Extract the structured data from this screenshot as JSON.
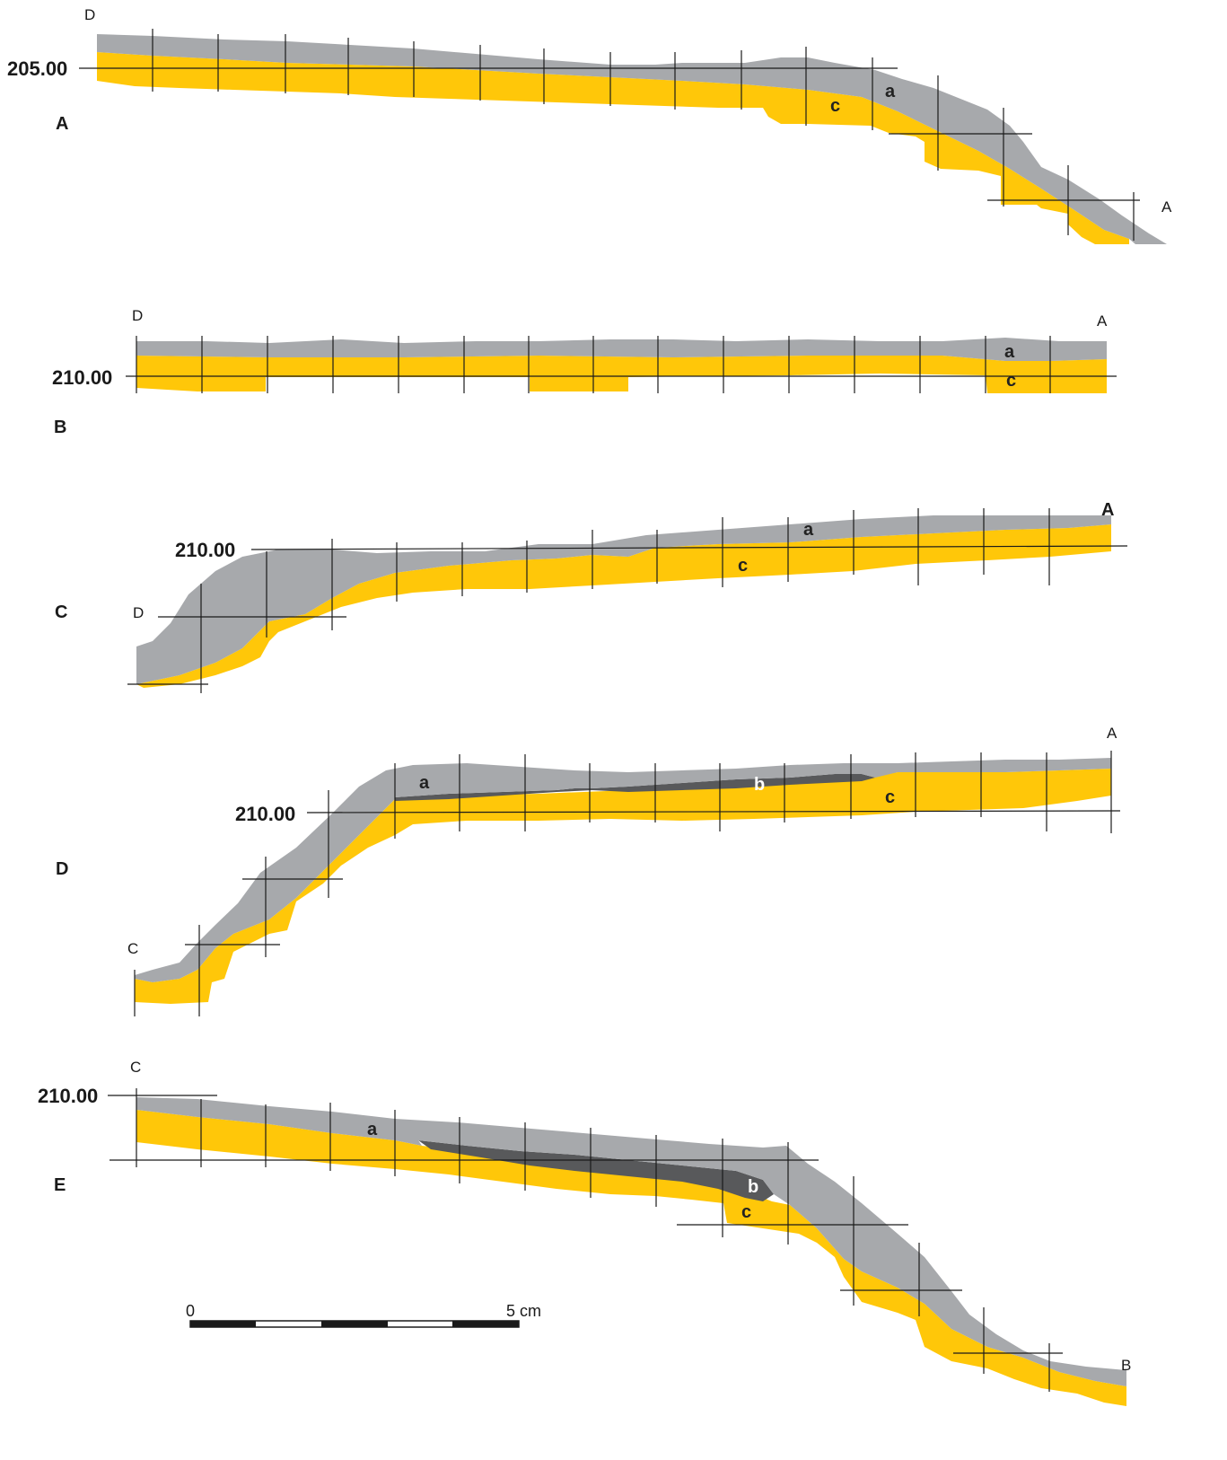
{
  "colors": {
    "layer_a": "#a7a9ac",
    "layer_b": "#58595b",
    "layer_c": "#ffc709",
    "ink": "#1a1a1a"
  },
  "sections": [
    {
      "id": "A",
      "label": "A",
      "elevation_label": "205.00",
      "end_labels": [
        "D",
        "A"
      ],
      "layer_labels": [
        "a",
        "c"
      ]
    },
    {
      "id": "B",
      "label": "B",
      "elevation_label": "210.00",
      "end_labels": [
        "D",
        "A"
      ],
      "layer_labels": [
        "a",
        "c"
      ]
    },
    {
      "id": "C",
      "label": "C",
      "elevation_label": "210.00",
      "end_labels": [
        "D",
        "A"
      ],
      "layer_labels": [
        "a",
        "c"
      ]
    },
    {
      "id": "D",
      "label": "D",
      "elevation_label": "210.00",
      "end_labels": [
        "C",
        "A"
      ],
      "layer_labels": [
        "a",
        "b",
        "c"
      ]
    },
    {
      "id": "E",
      "label": "E",
      "elevation_label": "210.00",
      "end_labels": [
        "C",
        "B"
      ],
      "layer_labels": [
        "a",
        "b",
        "c"
      ]
    }
  ],
  "scale_bar": {
    "start_label": "0",
    "end_label": "5 cm"
  }
}
